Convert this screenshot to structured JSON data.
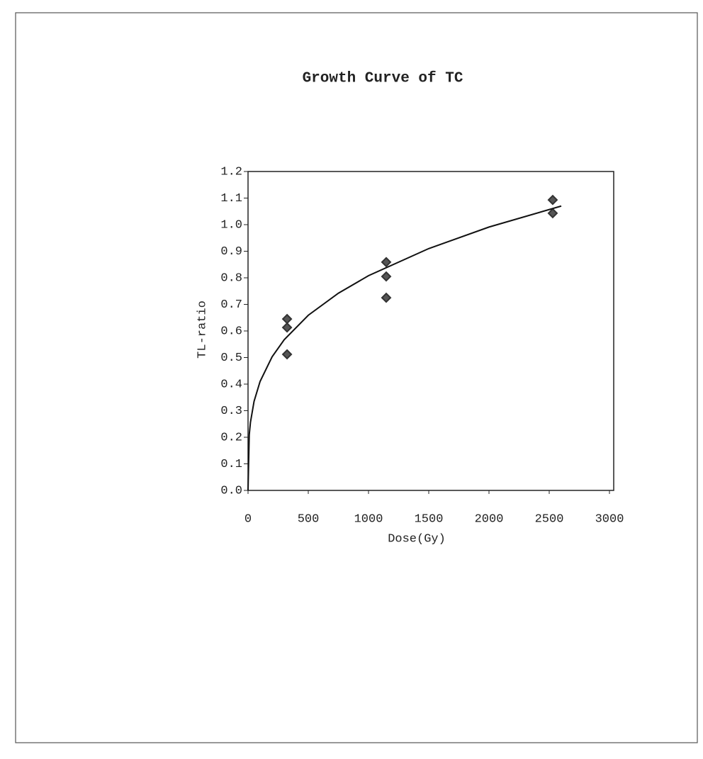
{
  "chart_data": {
    "type": "scatter",
    "title": "Growth Curve of TC",
    "x_label": "Dose(Gy)",
    "y_label": "TL-ratio",
    "xlim": [
      0,
      3000
    ],
    "xticks": [
      0,
      500,
      1000,
      1500,
      2000,
      2500,
      3000
    ],
    "ylim": [
      0,
      1.2
    ],
    "yticks": [
      {
        "value": 0,
        "label": "0.0"
      },
      0.1,
      0.2,
      0.3,
      0.4,
      0.5,
      0.6,
      0.7,
      0.8,
      0.9,
      {
        "value": 1,
        "label": "1.0"
      },
      1.1,
      1.2
    ],
    "series": [
      {
        "type": "scatter",
        "color": "#333333",
        "x": [
          324,
          324,
          324,
          1147,
          1147,
          1147,
          2529,
          2529
        ],
        "values": [
          0.645,
          0.613,
          0.512,
          0.859,
          0.805,
          0.725,
          1.093,
          1.043
        ]
      },
      {
        "type": "line",
        "color": "#111111",
        "x": [
          0,
          10,
          20,
          50,
          100,
          200,
          300,
          500,
          750,
          1000,
          1500,
          2000,
          2600
        ],
        "values": [
          0,
          0.209,
          0.256,
          0.335,
          0.41,
          0.503,
          0.567,
          0.659,
          0.742,
          0.808,
          0.91,
          0.991,
          1.07
        ]
      }
    ]
  }
}
